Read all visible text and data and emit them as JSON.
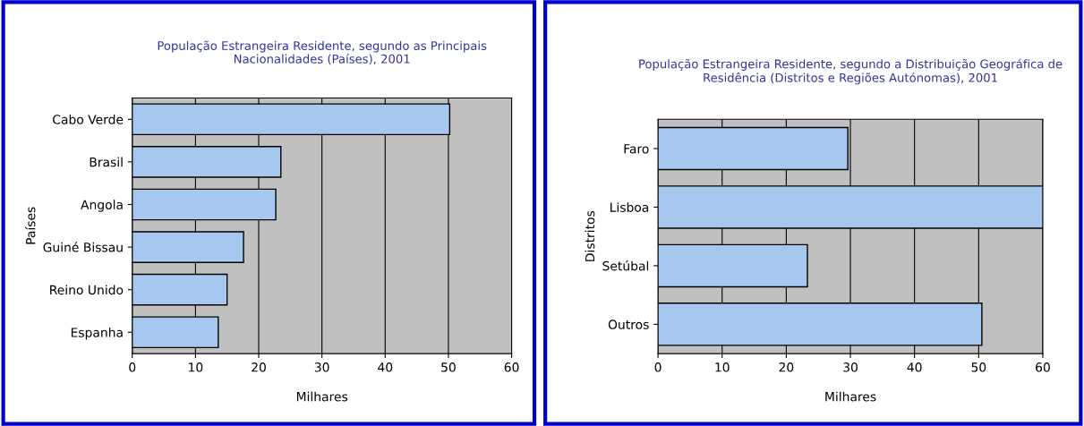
{
  "chart_data": [
    {
      "type": "bar",
      "orientation": "horizontal",
      "title": "População Estrangeira Residente, segundo as Principais\nNacionalidades (Países), 2001",
      "xlabel": "Milhares",
      "ylabel": "Países",
      "categories": [
        "Cabo Verde",
        "Brasil",
        "Angola",
        "Guiné Bissau",
        "Reino Unido",
        "Espanha"
      ],
      "values": [
        50.2,
        23.5,
        22.7,
        17.6,
        15.0,
        13.6
      ],
      "color": "#a6c8ee",
      "xlim": [
        0,
        60
      ],
      "xticks": [
        0,
        10,
        20,
        30,
        40,
        50,
        60
      ],
      "grid": "x"
    },
    {
      "type": "bar",
      "orientation": "horizontal",
      "title": "População Estrangeira Residente, segundo a Distribuição Geográfica de\nResidência (Distritos e Regiões Autónomas), 2001",
      "xlabel": "Milhares",
      "ylabel": "Distritos",
      "categories": [
        "Faro",
        "Lisboa",
        "Setúbal",
        "Outros"
      ],
      "values": [
        29.6,
        60.0,
        23.3,
        50.5
      ],
      "color": "#a6c8ee",
      "xlim": [
        0,
        60
      ],
      "xticks": [
        0,
        10,
        20,
        30,
        40,
        50,
        60
      ],
      "grid": "x"
    }
  ]
}
